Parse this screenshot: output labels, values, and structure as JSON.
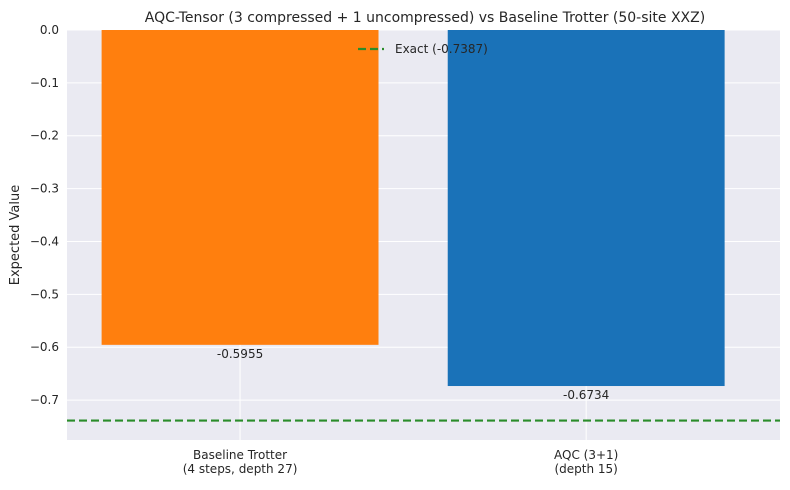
{
  "chart_data": {
    "type": "bar",
    "title": "AQC-Tensor (3 compressed + 1 uncompressed) vs Baseline Trotter (50-site XXZ)",
    "xlabel": "",
    "ylabel": "Expected Value",
    "categories": [
      {
        "line1": "Baseline Trotter",
        "line2": "(4 steps, depth 27)"
      },
      {
        "line1": "AQC (3+1)",
        "line2": "(depth 15)"
      }
    ],
    "values": [
      -0.5955,
      -0.6734
    ],
    "value_labels": [
      "-0.5955",
      "-0.6734"
    ],
    "bar_colors": [
      "#ff7f0e",
      "#1a72b8"
    ],
    "ylim": [
      -0.7755,
      0.0
    ],
    "yticks": [
      0.0,
      -0.1,
      -0.2,
      -0.3,
      -0.4,
      -0.5,
      -0.6,
      -0.7
    ],
    "ytick_labels": [
      "0.0",
      "−0.1",
      "−0.2",
      "−0.3",
      "−0.4",
      "−0.5",
      "−0.6",
      "−0.7"
    ],
    "reference_line": {
      "value": -0.7387,
      "label": "Exact (-0.7387)",
      "color": "#2a8c2a",
      "style": "dashed"
    },
    "legend": {
      "placement": "top-center",
      "entries": [
        "Exact (-0.7387)"
      ]
    },
    "grid": true,
    "background": "#eaeaf2"
  }
}
